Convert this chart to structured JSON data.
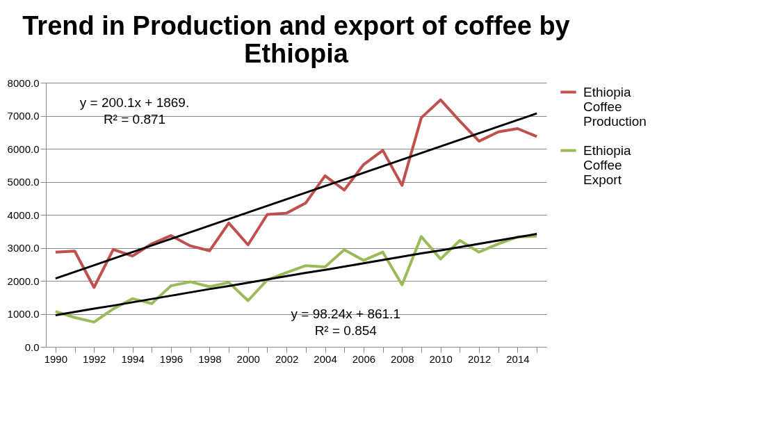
{
  "chart_data": {
    "type": "line",
    "title": "Trend in Production and export of coffee by Ethiopia",
    "categories": [
      "1990",
      null,
      "1992",
      null,
      "1994",
      null,
      "1996",
      null,
      "1998",
      null,
      "2000",
      null,
      "2002",
      null,
      "2004",
      null,
      "2006",
      null,
      "2008",
      null,
      "2010",
      null,
      "2012",
      null,
      "2014",
      null
    ],
    "series": [
      {
        "name": "Ethiopia Coffee Production",
        "color": "#c0504d",
        "values": [
          2870,
          2900,
          1800,
          2950,
          2750,
          3120,
          3370,
          3060,
          2910,
          3750,
          3090,
          4010,
          4050,
          4360,
          5180,
          4750,
          5520,
          5950,
          4890,
          6940,
          7480,
          6840,
          6230,
          6510,
          6610,
          6370
        ]
      },
      {
        "name": "Ethiopia Coffee Export",
        "color": "#9bbb59",
        "values": [
          1070,
          890,
          750,
          1150,
          1460,
          1310,
          1850,
          1970,
          1820,
          1950,
          1400,
          2030,
          2250,
          2460,
          2420,
          2940,
          2620,
          2870,
          1880,
          3340,
          2660,
          3220,
          2870,
          3120,
          3330,
          3350
        ]
      },
      {
        "type": "line",
        "color": "#000000",
        "values": [
          2070,
          2270,
          2470,
          2670,
          2870,
          3070,
          3270,
          3470,
          3670,
          3870,
          4070,
          4270,
          4470,
          4670,
          4870,
          5070,
          5270,
          5470,
          5670,
          5870,
          6070,
          6270,
          6470,
          6670,
          6870,
          7070
        ]
      },
      {
        "type": "line",
        "color": "#000000",
        "values": [
          960,
          1060,
          1160,
          1250,
          1350,
          1450,
          1550,
          1650,
          1750,
          1840,
          1940,
          2040,
          2140,
          2240,
          2330,
          2430,
          2530,
          2630,
          2730,
          2830,
          2920,
          3020,
          3120,
          3220,
          3320,
          3420
        ]
      }
    ],
    "ylim": [
      0,
      8000
    ],
    "yticks": [
      {
        "value": 0,
        "label": "0.0"
      },
      {
        "value": 1000,
        "label": "1000.0"
      },
      {
        "value": 2000,
        "label": "2000.0"
      },
      {
        "value": 3000,
        "label": "3000.0"
      },
      {
        "value": 4000,
        "label": "4000.0"
      },
      {
        "value": 5000,
        "label": "5000.0"
      },
      {
        "value": 6000,
        "label": "6000.0"
      },
      {
        "value": 7000,
        "label": "7000.0"
      },
      {
        "value": 8000,
        "label": "8000.0"
      }
    ],
    "annotations": [
      "y = 200.1x + 1869.\nR² = 0.871",
      "y = 98.24x + 861.1\nR² = 0.854"
    ],
    "grid": "y",
    "legend": "right",
    "marker": "none",
    "line_style": "solid"
  }
}
